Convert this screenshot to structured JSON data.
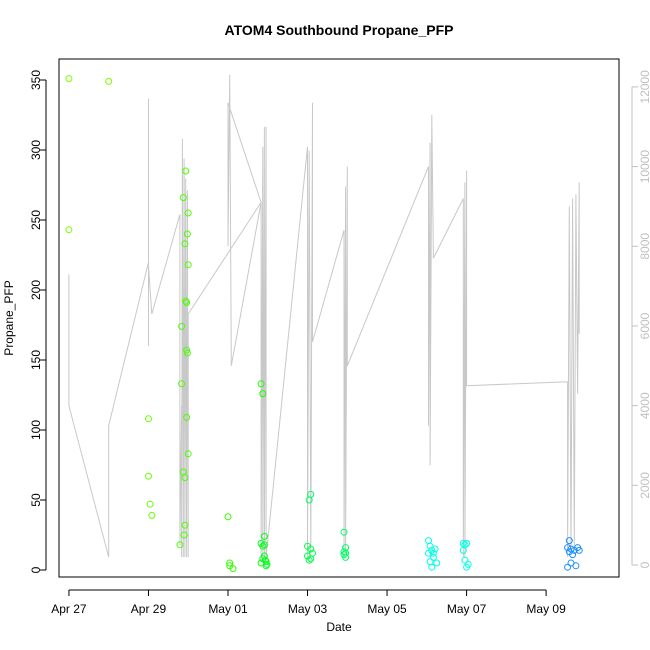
{
  "chart_data": {
    "type": "scatter",
    "title": "ATOM4 Southbound Propane_PFP",
    "xlabel": "Date",
    "ylabel": "Propane_PFP",
    "xlim": [
      "2017-04-26T18:00",
      "2017-05-10T20:00"
    ],
    "ylim": [
      -5,
      365
    ],
    "y2lim": [
      -300,
      12700
    ],
    "x_ticks": [
      {
        "date": "2017-04-27",
        "label": "Apr 27"
      },
      {
        "date": "2017-04-29",
        "label": "Apr 29"
      },
      {
        "date": "2017-05-01",
        "label": "May 01"
      },
      {
        "date": "2017-05-03",
        "label": "May 03"
      },
      {
        "date": "2017-05-05",
        "label": "May 05"
      },
      {
        "date": "2017-05-07",
        "label": "May 07"
      },
      {
        "date": "2017-05-09",
        "label": "May 09"
      }
    ],
    "y_ticks": [
      0,
      50,
      100,
      150,
      200,
      250,
      300,
      350
    ],
    "y2_ticks": [
      0,
      2000,
      4000,
      6000,
      8000,
      10000,
      12000
    ],
    "points": [
      {
        "x": "2017-04-27T00:00",
        "y": 351,
        "color": "#7FFF00"
      },
      {
        "x": "2017-04-27T00:00",
        "y": 243,
        "color": "#7FFF00"
      },
      {
        "x": "2017-04-28T00:00",
        "y": 349,
        "color": "#7FFF00"
      },
      {
        "x": "2017-04-29T00:00",
        "y": 108,
        "color": "#66FF00"
      },
      {
        "x": "2017-04-29T00:00",
        "y": 67,
        "color": "#66FF00"
      },
      {
        "x": "2017-04-29T01:00",
        "y": 47,
        "color": "#66FF00"
      },
      {
        "x": "2017-04-29T02:00",
        "y": 39,
        "color": "#66FF00"
      },
      {
        "x": "2017-04-29T19:00",
        "y": 18,
        "color": "#4CFF00"
      },
      {
        "x": "2017-04-29T20:00",
        "y": 133,
        "color": "#4CFF00"
      },
      {
        "x": "2017-04-29T20:00",
        "y": 174,
        "color": "#4CFF00"
      },
      {
        "x": "2017-04-29T21:00",
        "y": 266,
        "color": "#4CFF00"
      },
      {
        "x": "2017-04-29T21:00",
        "y": 70,
        "color": "#4CFF00"
      },
      {
        "x": "2017-04-29T21:30",
        "y": 25,
        "color": "#4CFF00"
      },
      {
        "x": "2017-04-29T22:00",
        "y": 233,
        "color": "#4CFF00"
      },
      {
        "x": "2017-04-29T22:00",
        "y": 66,
        "color": "#4CFF00"
      },
      {
        "x": "2017-04-29T22:00",
        "y": 32,
        "color": "#4CFF00"
      },
      {
        "x": "2017-04-29T22:30",
        "y": 285,
        "color": "#4CFF00"
      },
      {
        "x": "2017-04-29T22:30",
        "y": 192,
        "color": "#4CFF00"
      },
      {
        "x": "2017-04-29T23:00",
        "y": 191,
        "color": "#4CFF00"
      },
      {
        "x": "2017-04-29T23:00",
        "y": 109,
        "color": "#4CFF00"
      },
      {
        "x": "2017-04-29T23:00",
        "y": 157,
        "color": "#4CFF00"
      },
      {
        "x": "2017-04-29T23:30",
        "y": 240,
        "color": "#4CFF00"
      },
      {
        "x": "2017-04-29T23:30",
        "y": 155,
        "color": "#4CFF00"
      },
      {
        "x": "2017-04-30T00:00",
        "y": 255,
        "color": "#4CFF00"
      },
      {
        "x": "2017-04-30T00:00",
        "y": 218,
        "color": "#4CFF00"
      },
      {
        "x": "2017-04-30T00:00",
        "y": 83,
        "color": "#4CFF00"
      },
      {
        "x": "2017-05-01T00:00",
        "y": 38,
        "color": "#33FF00"
      },
      {
        "x": "2017-05-01T01:00",
        "y": 3,
        "color": "#33FF00"
      },
      {
        "x": "2017-05-01T01:00",
        "y": 5,
        "color": "#33FF00"
      },
      {
        "x": "2017-05-01T03:00",
        "y": 1,
        "color": "#33FF00"
      },
      {
        "x": "2017-05-01T20:00",
        "y": 133,
        "color": "#19FF00"
      },
      {
        "x": "2017-05-01T20:00",
        "y": 19,
        "color": "#00FF19"
      },
      {
        "x": "2017-05-01T20:00",
        "y": 5,
        "color": "#00FF19"
      },
      {
        "x": "2017-05-01T21:00",
        "y": 126,
        "color": "#19FF00"
      },
      {
        "x": "2017-05-01T21:00",
        "y": 17,
        "color": "#00FF19"
      },
      {
        "x": "2017-05-01T21:00",
        "y": 8,
        "color": "#00FF19"
      },
      {
        "x": "2017-05-01T22:00",
        "y": 24,
        "color": "#00FF19"
      },
      {
        "x": "2017-05-01T22:00",
        "y": 18,
        "color": "#00FF19"
      },
      {
        "x": "2017-05-01T22:00",
        "y": 10,
        "color": "#00FF19"
      },
      {
        "x": "2017-05-01T22:30",
        "y": 7,
        "color": "#00FF19"
      },
      {
        "x": "2017-05-01T23:00",
        "y": 6,
        "color": "#00FF19"
      },
      {
        "x": "2017-05-01T23:00",
        "y": 3,
        "color": "#00FF19"
      },
      {
        "x": "2017-05-01T23:30",
        "y": 4,
        "color": "#00FF19"
      },
      {
        "x": "2017-05-03T00:00",
        "y": 17,
        "color": "#00FF4C"
      },
      {
        "x": "2017-05-03T00:00",
        "y": 10,
        "color": "#00FF4C"
      },
      {
        "x": "2017-05-03T01:00",
        "y": 50,
        "color": "#00FF66"
      },
      {
        "x": "2017-05-03T01:00",
        "y": 7,
        "color": "#00FF4C"
      },
      {
        "x": "2017-05-03T02:00",
        "y": 54,
        "color": "#00FF66"
      },
      {
        "x": "2017-05-03T02:00",
        "y": 15,
        "color": "#00FF4C"
      },
      {
        "x": "2017-05-03T02:00",
        "y": 8,
        "color": "#00FF4C"
      },
      {
        "x": "2017-05-03T03:00",
        "y": 12,
        "color": "#00FF4C"
      },
      {
        "x": "2017-05-03T22:00",
        "y": 27,
        "color": "#00FF66"
      },
      {
        "x": "2017-05-03T22:00",
        "y": 13,
        "color": "#00FF66"
      },
      {
        "x": "2017-05-03T22:00",
        "y": 11,
        "color": "#00FF66"
      },
      {
        "x": "2017-05-03T23:00",
        "y": 16,
        "color": "#00FF66"
      },
      {
        "x": "2017-05-03T23:00",
        "y": 12,
        "color": "#00FF66"
      },
      {
        "x": "2017-05-03T23:00",
        "y": 9,
        "color": "#00FF66"
      },
      {
        "x": "2017-05-06T01:00",
        "y": 21,
        "color": "#00FFE6"
      },
      {
        "x": "2017-05-06T01:00",
        "y": 12,
        "color": "#00FFE6"
      },
      {
        "x": "2017-05-06T02:00",
        "y": 17,
        "color": "#00FFE6"
      },
      {
        "x": "2017-05-06T02:00",
        "y": 6,
        "color": "#00FFE6"
      },
      {
        "x": "2017-05-06T03:00",
        "y": 14,
        "color": "#00FFE6"
      },
      {
        "x": "2017-05-06T03:00",
        "y": 2,
        "color": "#00FFE6"
      },
      {
        "x": "2017-05-06T04:00",
        "y": 12,
        "color": "#00FFE6"
      },
      {
        "x": "2017-05-06T04:00",
        "y": 9,
        "color": "#00FFE6"
      },
      {
        "x": "2017-05-06T05:00",
        "y": 15,
        "color": "#00FFE6"
      },
      {
        "x": "2017-05-06T06:00",
        "y": 5,
        "color": "#00FFE6"
      },
      {
        "x": "2017-05-06T22:00",
        "y": 19,
        "color": "#00FFE6"
      },
      {
        "x": "2017-05-06T22:00",
        "y": 14,
        "color": "#00FFE6"
      },
      {
        "x": "2017-05-06T23:00",
        "y": 18,
        "color": "#00FFE6"
      },
      {
        "x": "2017-05-06T23:00",
        "y": 7,
        "color": "#00FFE6"
      },
      {
        "x": "2017-05-07T00:00",
        "y": 19,
        "color": "#00FFE6"
      },
      {
        "x": "2017-05-07T00:00",
        "y": 2,
        "color": "#00FFE6"
      },
      {
        "x": "2017-05-07T01:00",
        "y": 4,
        "color": "#00FFE6"
      },
      {
        "x": "2017-05-09T13:00",
        "y": 16,
        "color": "#1E90FF"
      },
      {
        "x": "2017-05-09T13:00",
        "y": 2,
        "color": "#1E90FF"
      },
      {
        "x": "2017-05-09T14:00",
        "y": 21,
        "color": "#1E90FF"
      },
      {
        "x": "2017-05-09T14:00",
        "y": 13,
        "color": "#1E90FF"
      },
      {
        "x": "2017-05-09T15:00",
        "y": 15,
        "color": "#1E90FF"
      },
      {
        "x": "2017-05-09T15:00",
        "y": 5,
        "color": "#1E90FF"
      },
      {
        "x": "2017-05-09T16:00",
        "y": 11,
        "color": "#1E90FF"
      },
      {
        "x": "2017-05-09T17:00",
        "y": 14,
        "color": "#1E90FF"
      },
      {
        "x": "2017-05-09T18:00",
        "y": 3,
        "color": "#1E90FF"
      },
      {
        "x": "2017-05-09T19:00",
        "y": 16,
        "color": "#1E90FF"
      },
      {
        "x": "2017-05-09T20:00",
        "y": 14,
        "color": "#1E90FF"
      }
    ],
    "secondary_line": {
      "axis": "right",
      "color": "#c8c8c8",
      "points": [
        [
          "2017-04-27T00:00",
          7300
        ],
        [
          "2017-04-27T00:00",
          4000
        ],
        [
          "2017-04-28T00:00",
          200
        ],
        [
          "2017-04-28T00:00",
          3500
        ],
        [
          "2017-04-29T00:00",
          7600
        ],
        [
          "2017-04-29T00:00",
          11700
        ],
        [
          "2017-04-29T00:00",
          5500
        ],
        [
          "2017-04-29T00:00",
          7500
        ],
        [
          "2017-04-29T02:00",
          6300
        ],
        [
          "2017-04-29T19:00",
          8800
        ],
        [
          "2017-04-29T19:00",
          500
        ],
        [
          "2017-04-29T20:00",
          4000
        ],
        [
          "2017-04-29T20:00",
          200
        ],
        [
          "2017-04-29T20:30",
          10700
        ],
        [
          "2017-04-29T21:00",
          200
        ],
        [
          "2017-04-29T21:30",
          10200
        ],
        [
          "2017-04-29T22:00",
          200
        ],
        [
          "2017-04-29T22:30",
          9700
        ],
        [
          "2017-04-29T23:00",
          200
        ],
        [
          "2017-04-29T23:30",
          9400
        ],
        [
          "2017-04-30T00:00",
          200
        ],
        [
          "2017-04-30T00:00",
          6300
        ],
        [
          "2017-05-01T20:00",
          9100
        ],
        [
          "2017-05-01T00:00",
          11600
        ],
        [
          "2017-05-01T00:00",
          8000
        ],
        [
          "2017-05-01T01:00",
          12300
        ],
        [
          "2017-05-01T02:00",
          5000
        ],
        [
          "2017-05-01T20:00",
          9100
        ],
        [
          "2017-05-01T20:00",
          200
        ],
        [
          "2017-05-01T21:00",
          10500
        ],
        [
          "2017-05-01T21:00",
          200
        ],
        [
          "2017-05-01T22:00",
          11000
        ],
        [
          "2017-05-01T22:00",
          200
        ],
        [
          "2017-05-01T23:00",
          11000
        ],
        [
          "2017-05-01T23:00",
          200
        ],
        [
          "2017-05-03T00:00",
          10500
        ],
        [
          "2017-05-03T00:00",
          200
        ],
        [
          "2017-05-03T01:00",
          10400
        ],
        [
          "2017-05-03T02:00",
          300
        ],
        [
          "2017-05-03T03:00",
          11600
        ],
        [
          "2017-05-03T03:00",
          5600
        ],
        [
          "2017-05-03T22:00",
          8400
        ],
        [
          "2017-05-03T22:00",
          200
        ],
        [
          "2017-05-03T23:00",
          9500
        ],
        [
          "2017-05-03T23:00",
          300
        ],
        [
          "2017-05-04T00:00",
          10000
        ],
        [
          "2017-05-04T00:00",
          5000
        ],
        [
          "2017-05-06T01:00",
          10000
        ],
        [
          "2017-05-06T01:00",
          3500
        ],
        [
          "2017-05-06T02:00",
          10600
        ],
        [
          "2017-05-06T02:00",
          2500
        ],
        [
          "2017-05-06T03:00",
          11300
        ],
        [
          "2017-05-06T04:00",
          7700
        ],
        [
          "2017-05-06T22:00",
          9200
        ],
        [
          "2017-05-06T22:00",
          200
        ],
        [
          "2017-05-06T23:00",
          9600
        ],
        [
          "2017-05-06T23:00",
          200
        ],
        [
          "2017-05-07T00:00",
          9900
        ],
        [
          "2017-05-07T00:00",
          4500
        ],
        [
          "2017-05-09T13:00",
          4600
        ],
        [
          "2017-05-09T13:00",
          200
        ],
        [
          "2017-05-09T14:00",
          9000
        ],
        [
          "2017-05-09T15:00",
          300
        ],
        [
          "2017-05-09T16:00",
          9200
        ],
        [
          "2017-05-09T17:00",
          400
        ],
        [
          "2017-05-09T18:00",
          9300
        ],
        [
          "2017-05-09T19:00",
          4300
        ],
        [
          "2017-05-09T20:00",
          9600
        ],
        [
          "2017-05-09T20:00",
          5800
        ]
      ]
    }
  }
}
